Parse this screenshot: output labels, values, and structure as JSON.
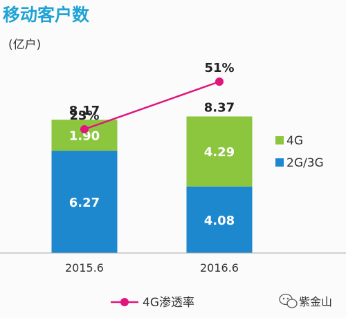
{
  "chart_data": {
    "type": "bar",
    "title": "移动客户数",
    "unit": "(亿户)",
    "categories": [
      "2015.6",
      "2016.6"
    ],
    "totals": [
      "8.17",
      "8.37"
    ],
    "series": [
      {
        "name": "2G/3G",
        "values": [
          6.27,
          4.08
        ],
        "labels": [
          "6.27",
          "4.08"
        ],
        "color": "#1e88cf"
      },
      {
        "name": "4G",
        "values": [
          1.9,
          4.29
        ],
        "labels": [
          "1.90",
          "4.29"
        ],
        "color": "#8cc63f"
      }
    ],
    "line": {
      "name": "4G渗透率",
      "values": [
        23,
        51
      ],
      "labels": [
        "23%",
        "51%"
      ],
      "color": "#e0157d"
    },
    "legend_placement": "right",
    "grid": false
  },
  "watermark": {
    "text": "紫金山",
    "icon": "wechat-icon"
  }
}
